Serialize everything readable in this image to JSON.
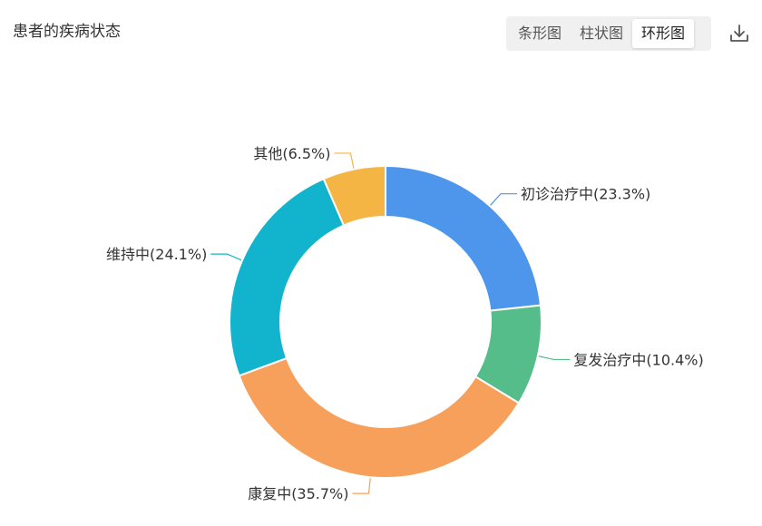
{
  "header": {
    "title": "患者的疾病状态",
    "tabs": [
      {
        "label": "条形图",
        "active": false
      },
      {
        "label": "柱状图",
        "active": false
      },
      {
        "label": "环形图",
        "active": true
      }
    ],
    "download_icon": "download-icon"
  },
  "chart_data": {
    "type": "pie",
    "donut": true,
    "slices": [
      {
        "name": "初诊治疗中",
        "value": 23.3,
        "label": "初诊治疗中(23.3%)",
        "color": "#4e96ec"
      },
      {
        "name": "复发治疗中",
        "value": 10.4,
        "label": "复发治疗中(10.4%)",
        "color": "#55bd8a"
      },
      {
        "name": "康复中",
        "value": 35.7,
        "label": "康复中(35.7%)",
        "color": "#f6a05c"
      },
      {
        "name": "维持中",
        "value": 24.1,
        "label": "维持中(24.1%)",
        "color": "#12b3cd"
      },
      {
        "name": "其他",
        "value": 6.5,
        "label": "其他(6.5%)",
        "color": "#f5b544"
      }
    ]
  }
}
